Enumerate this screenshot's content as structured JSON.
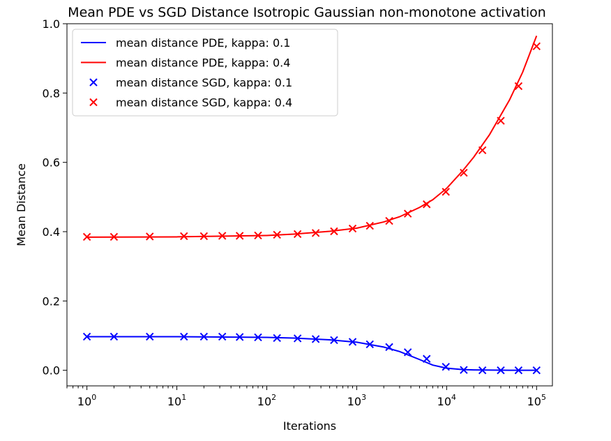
{
  "chart_data": {
    "type": "line",
    "title": "Mean PDE vs SGD Distance Isotropic Gaussian non-monotone activation",
    "xlabel": "Iterations",
    "ylabel": "Mean Distance",
    "xscale": "log",
    "xlim": [
      0.6,
      150000
    ],
    "ylim": [
      -0.045,
      1.0
    ],
    "xticks": [
      {
        "value": 1,
        "base": "10",
        "exp": "0"
      },
      {
        "value": 10,
        "base": "10",
        "exp": "1"
      },
      {
        "value": 100,
        "base": "10",
        "exp": "2"
      },
      {
        "value": 1000,
        "base": "10",
        "exp": "3"
      },
      {
        "value": 10000,
        "base": "10",
        "exp": "4"
      },
      {
        "value": 100000,
        "base": "10",
        "exp": "5"
      }
    ],
    "yticks": [
      {
        "value": 0.0,
        "label": "0.0"
      },
      {
        "value": 0.2,
        "label": "0.2"
      },
      {
        "value": 0.4,
        "label": "0.4"
      },
      {
        "value": 0.6,
        "label": "0.6"
      },
      {
        "value": 0.8,
        "label": "0.8"
      },
      {
        "value": 1.0,
        "label": "1.0"
      }
    ],
    "grid": false,
    "legend_position": "top-left",
    "series": [
      {
        "name": "mean distance PDE, kappa: 0.1",
        "kind": "line",
        "color": "#0000ff",
        "x": [
          1,
          10,
          100,
          200,
          500,
          1000,
          2000,
          3000,
          5000,
          7000,
          10000,
          15000,
          20000,
          50000,
          100000
        ],
        "y": [
          0.097,
          0.097,
          0.095,
          0.093,
          0.088,
          0.081,
          0.067,
          0.054,
          0.031,
          0.015,
          0.006,
          0.002,
          0.001,
          0.0,
          0.0
        ]
      },
      {
        "name": "mean distance PDE, kappa: 0.4",
        "kind": "line",
        "color": "#ff0000",
        "x": [
          1,
          10,
          100,
          200,
          500,
          1000,
          2000,
          3000,
          5000,
          7000,
          10000,
          15000,
          20000,
          30000,
          50000,
          70000,
          100000
        ],
        "y": [
          0.384,
          0.385,
          0.389,
          0.393,
          0.401,
          0.41,
          0.428,
          0.443,
          0.47,
          0.492,
          0.525,
          0.575,
          0.615,
          0.68,
          0.78,
          0.86,
          0.965
        ]
      },
      {
        "name": "mean distance SGD, kappa: 0.1",
        "kind": "scatter",
        "marker": "x",
        "color": "#0000ff",
        "x": [
          1,
          2,
          5,
          12,
          20,
          32,
          50,
          80,
          130,
          220,
          350,
          560,
          900,
          1400,
          2300,
          3700,
          6000,
          9800,
          15500,
          25000,
          40000,
          63000,
          100000
        ],
        "y": [
          0.097,
          0.097,
          0.097,
          0.097,
          0.097,
          0.097,
          0.096,
          0.095,
          0.093,
          0.092,
          0.09,
          0.087,
          0.082,
          0.075,
          0.067,
          0.052,
          0.033,
          0.01,
          0.001,
          0.0,
          0.0,
          0.0,
          0.0
        ]
      },
      {
        "name": "mean distance SGD, kappa: 0.4",
        "kind": "scatter",
        "marker": "x",
        "color": "#ff0000",
        "x": [
          1,
          2,
          5,
          12,
          20,
          32,
          50,
          80,
          130,
          220,
          350,
          560,
          900,
          1400,
          2300,
          3700,
          6000,
          9800,
          15500,
          25000,
          40000,
          63000,
          100000
        ],
        "y": [
          0.385,
          0.385,
          0.386,
          0.387,
          0.387,
          0.388,
          0.388,
          0.389,
          0.391,
          0.393,
          0.396,
          0.401,
          0.409,
          0.417,
          0.431,
          0.452,
          0.479,
          0.515,
          0.57,
          0.635,
          0.72,
          0.82,
          0.935
        ]
      }
    ]
  }
}
